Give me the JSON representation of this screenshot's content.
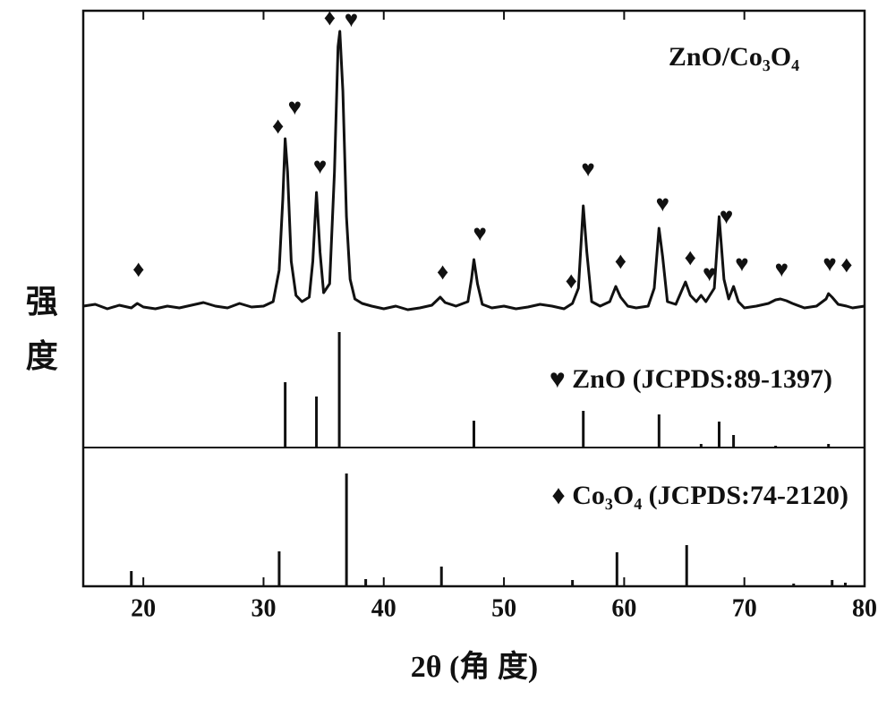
{
  "chart_data": [
    {
      "type": "line",
      "title": "ZnO/Co₃O₄",
      "ylabel": "强 度",
      "color": "#111111",
      "xlim": [
        15,
        80
      ],
      "ylim": [
        -158,
        330
      ],
      "x": [
        15,
        16,
        17,
        18,
        19,
        19.5,
        20,
        21,
        22,
        23,
        24,
        25,
        26,
        27,
        28,
        29,
        30,
        30.8,
        31.3,
        31.6,
        31.8,
        32.0,
        32.3,
        32.7,
        33.2,
        33.8,
        34.1,
        34.4,
        34.7,
        35.0,
        35.5,
        35.9,
        36.2,
        36.35,
        36.6,
        36.9,
        37.2,
        37.6,
        38.2,
        39,
        40,
        41,
        42,
        43,
        44,
        44.7,
        45.1,
        46,
        47,
        47.3,
        47.5,
        47.8,
        48.2,
        49,
        50,
        51,
        52,
        53,
        54,
        55,
        55.7,
        56.2,
        56.6,
        56.9,
        57.3,
        58,
        58.8,
        59.3,
        59.7,
        60.3,
        61,
        62,
        62.5,
        62.9,
        63.2,
        63.6,
        64.3,
        65.1,
        65.5,
        66.0,
        66.4,
        66.8,
        67.5,
        67.9,
        68.3,
        68.7,
        69.1,
        69.5,
        70,
        71,
        72,
        72.6,
        73,
        73.5,
        74,
        75,
        76,
        76.8,
        77,
        77.3,
        77.8,
        78.5,
        79,
        80
      ],
      "values": [
        0,
        2,
        -3,
        1,
        -2,
        3,
        -1,
        -3,
        0,
        -2,
        1,
        4,
        0,
        -2,
        3,
        -1,
        0,
        5,
        40,
        120,
        187,
        150,
        50,
        12,
        5,
        10,
        50,
        127,
        60,
        15,
        25,
        150,
        290,
        307,
        240,
        100,
        30,
        8,
        3,
        0,
        -3,
        0,
        -4,
        -2,
        1,
        10,
        4,
        0,
        5,
        30,
        52,
        25,
        2,
        -2,
        0,
        -3,
        -1,
        2,
        0,
        -3,
        3,
        20,
        112,
        60,
        5,
        0,
        5,
        22,
        10,
        0,
        -2,
        0,
        20,
        87,
        55,
        5,
        2,
        27,
        12,
        5,
        12,
        5,
        20,
        100,
        30,
        8,
        22,
        5,
        -2,
        0,
        3,
        7,
        8,
        6,
        3,
        -2,
        0,
        8,
        14,
        10,
        2,
        0,
        -2,
        0
      ],
      "annotations": [
        {
          "text": "♦",
          "x": 19.6,
          "y": 39
        },
        {
          "text": "♦",
          "x": 31.2,
          "y": 199
        },
        {
          "text": "♥",
          "x": 32.6,
          "y": 220
        },
        {
          "text": "♥",
          "x": 34.7,
          "y": 154
        },
        {
          "text": "♦",
          "x": 35.5,
          "y": 320
        },
        {
          "text": "♥",
          "x": 37.3,
          "y": 318
        },
        {
          "text": "♦",
          "x": 44.9,
          "y": 36
        },
        {
          "text": "♥",
          "x": 48.0,
          "y": 79
        },
        {
          "text": "♦",
          "x": 55.6,
          "y": 26
        },
        {
          "text": "♥",
          "x": 57.0,
          "y": 151
        },
        {
          "text": "♦",
          "x": 59.7,
          "y": 48
        },
        {
          "text": "♥",
          "x": 63.2,
          "y": 112
        },
        {
          "text": "♦",
          "x": 65.5,
          "y": 52
        },
        {
          "text": "♥",
          "x": 67.1,
          "y": 34
        },
        {
          "text": "♥",
          "x": 68.5,
          "y": 98
        },
        {
          "text": "♥",
          "x": 69.8,
          "y": 45
        },
        {
          "text": "♥",
          "x": 73.1,
          "y": 39
        },
        {
          "text": "♥",
          "x": 77.1,
          "y": 45
        },
        {
          "text": "♦",
          "x": 78.5,
          "y": 44
        }
      ]
    },
    {
      "type": "stem",
      "name": "♥ ZnO (JCPDS:89-1397)",
      "color": "#111111",
      "xlim": [
        15,
        80
      ],
      "ylim": [
        0,
        488
      ],
      "x": [
        31.8,
        34.4,
        36.3,
        47.5,
        56.6,
        62.9,
        66.4,
        67.9,
        69.1,
        72.6,
        77.0
      ],
      "values": [
        73,
        57,
        129,
        30,
        41,
        37,
        4,
        29,
        14,
        2,
        4
      ]
    },
    {
      "type": "stem",
      "name": "♦ Co₃O₄ (JCPDS:74-2120)",
      "color": "#111111",
      "xlim": [
        15,
        80
      ],
      "ylim": [
        0,
        155
      ],
      "xlabel": "2θ (角 度)",
      "xticks": [
        20,
        30,
        40,
        50,
        60,
        70,
        80
      ],
      "x": [
        19.0,
        31.3,
        36.9,
        38.5,
        44.8,
        55.7,
        59.4,
        65.2,
        74.1,
        77.3,
        78.4
      ],
      "values": [
        17,
        39,
        126,
        8,
        22,
        7,
        38,
        46,
        3,
        7,
        4
      ]
    }
  ]
}
